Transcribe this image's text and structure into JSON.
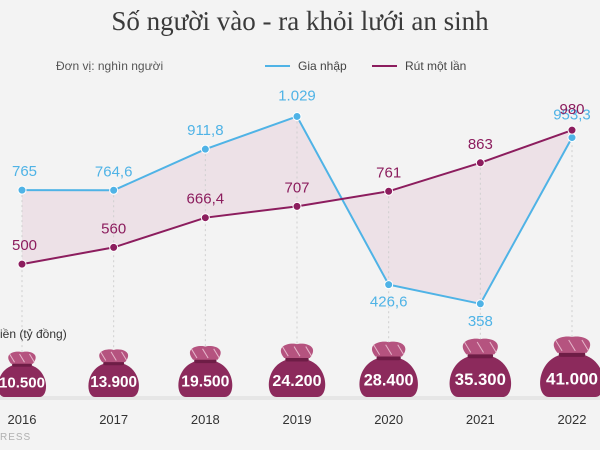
{
  "chart_data": {
    "type": "line",
    "title": "Số người vào - ra khỏi lưới an sinh",
    "unit_label": "Đơn vị: nghìn người",
    "x": [
      "2016",
      "2017",
      "2018",
      "2019",
      "2020",
      "2021",
      "2022"
    ],
    "series": [
      {
        "name": "Gia nhập",
        "color": "#4fb3e6",
        "values": [
          765,
          764.6,
          911.8,
          1029,
          426.6,
          358,
          953.3
        ],
        "labels": [
          "765",
          "764,6",
          "911,8",
          "1.029",
          "426,6",
          "358",
          "953,3"
        ]
      },
      {
        "name": "Rút một lần",
        "color": "#8c1d5e",
        "values": [
          500,
          560,
          666.4,
          707,
          761,
          863,
          980
        ],
        "labels": [
          "500",
          "560",
          "666,4",
          "707",
          "761",
          "863",
          "980"
        ]
      }
    ],
    "ylim": [
      300,
      1070
    ],
    "secondary": {
      "label": "iền (tỷ đồng)",
      "type": "bags",
      "values": [
        10500,
        13900,
        19500,
        24200,
        28400,
        35300,
        41000
      ],
      "labels": [
        "10.500",
        "13.900",
        "19.500",
        "24.200",
        "28.400",
        "35.300",
        "41.000"
      ],
      "color": "#8c2a5c"
    },
    "watermark": "RESS"
  }
}
